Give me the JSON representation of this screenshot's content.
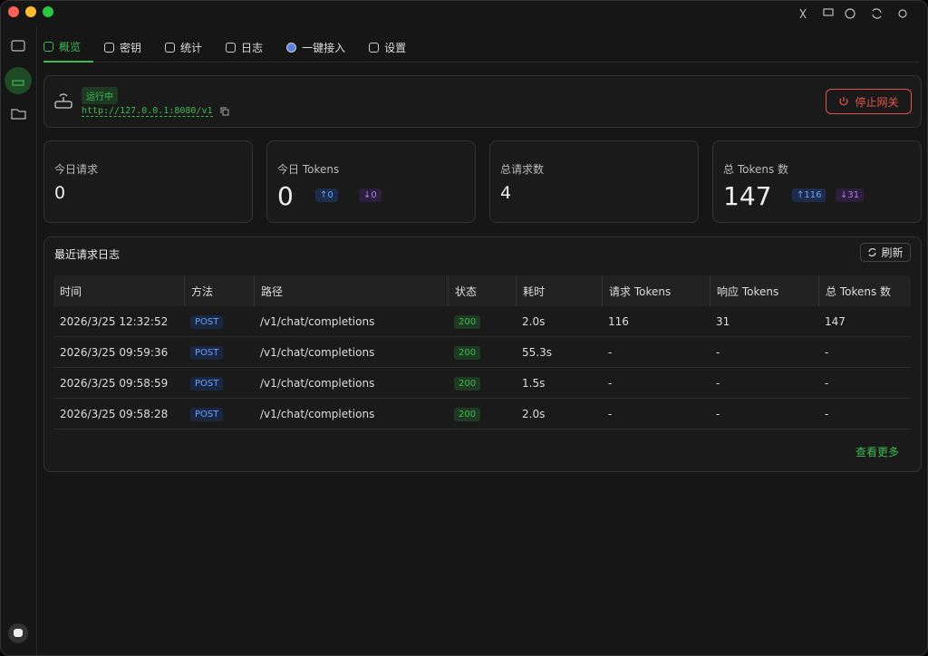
{
  "tabs": [
    "概览",
    "密钥",
    "统计",
    "日志",
    "一键接入",
    "设置"
  ],
  "gateway": {
    "status": "运行中",
    "url": "http://127.0.0.1:8080/v1",
    "stop": "停止网关"
  },
  "stats": [
    {
      "label": "今日请求",
      "value": "0"
    },
    {
      "label": "今日 Tokens",
      "value": "0",
      "up": "↑0",
      "down": "↓0"
    },
    {
      "label": "总请求数",
      "value": "4"
    },
    {
      "label": "总 Tokens 数",
      "value": "147",
      "up": "↑116",
      "down": "↓31"
    }
  ],
  "log": {
    "title": "最近请求日志",
    "refresh": "刷新",
    "more": "查看更多",
    "headers": [
      "时间",
      "方法",
      "路径",
      "状态",
      "耗时",
      "请求 Tokens",
      "响应 Tokens",
      "总 Tokens 数"
    ],
    "rows": [
      [
        "2026/3/25 12:32:52",
        "POST",
        "/v1/chat/completions",
        "200",
        "2.0s",
        "116",
        "31",
        "147"
      ],
      [
        "2026/3/25 09:59:36",
        "POST",
        "/v1/chat/completions",
        "200",
        "55.3s",
        "-",
        "-",
        "-"
      ],
      [
        "2026/3/25 09:58:59",
        "POST",
        "/v1/chat/completions",
        "200",
        "1.5s",
        "-",
        "-",
        "-"
      ],
      [
        "2026/3/25 09:58:28",
        "POST",
        "/v1/chat/completions",
        "200",
        "2.0s",
        "-",
        "-",
        "-"
      ]
    ]
  }
}
